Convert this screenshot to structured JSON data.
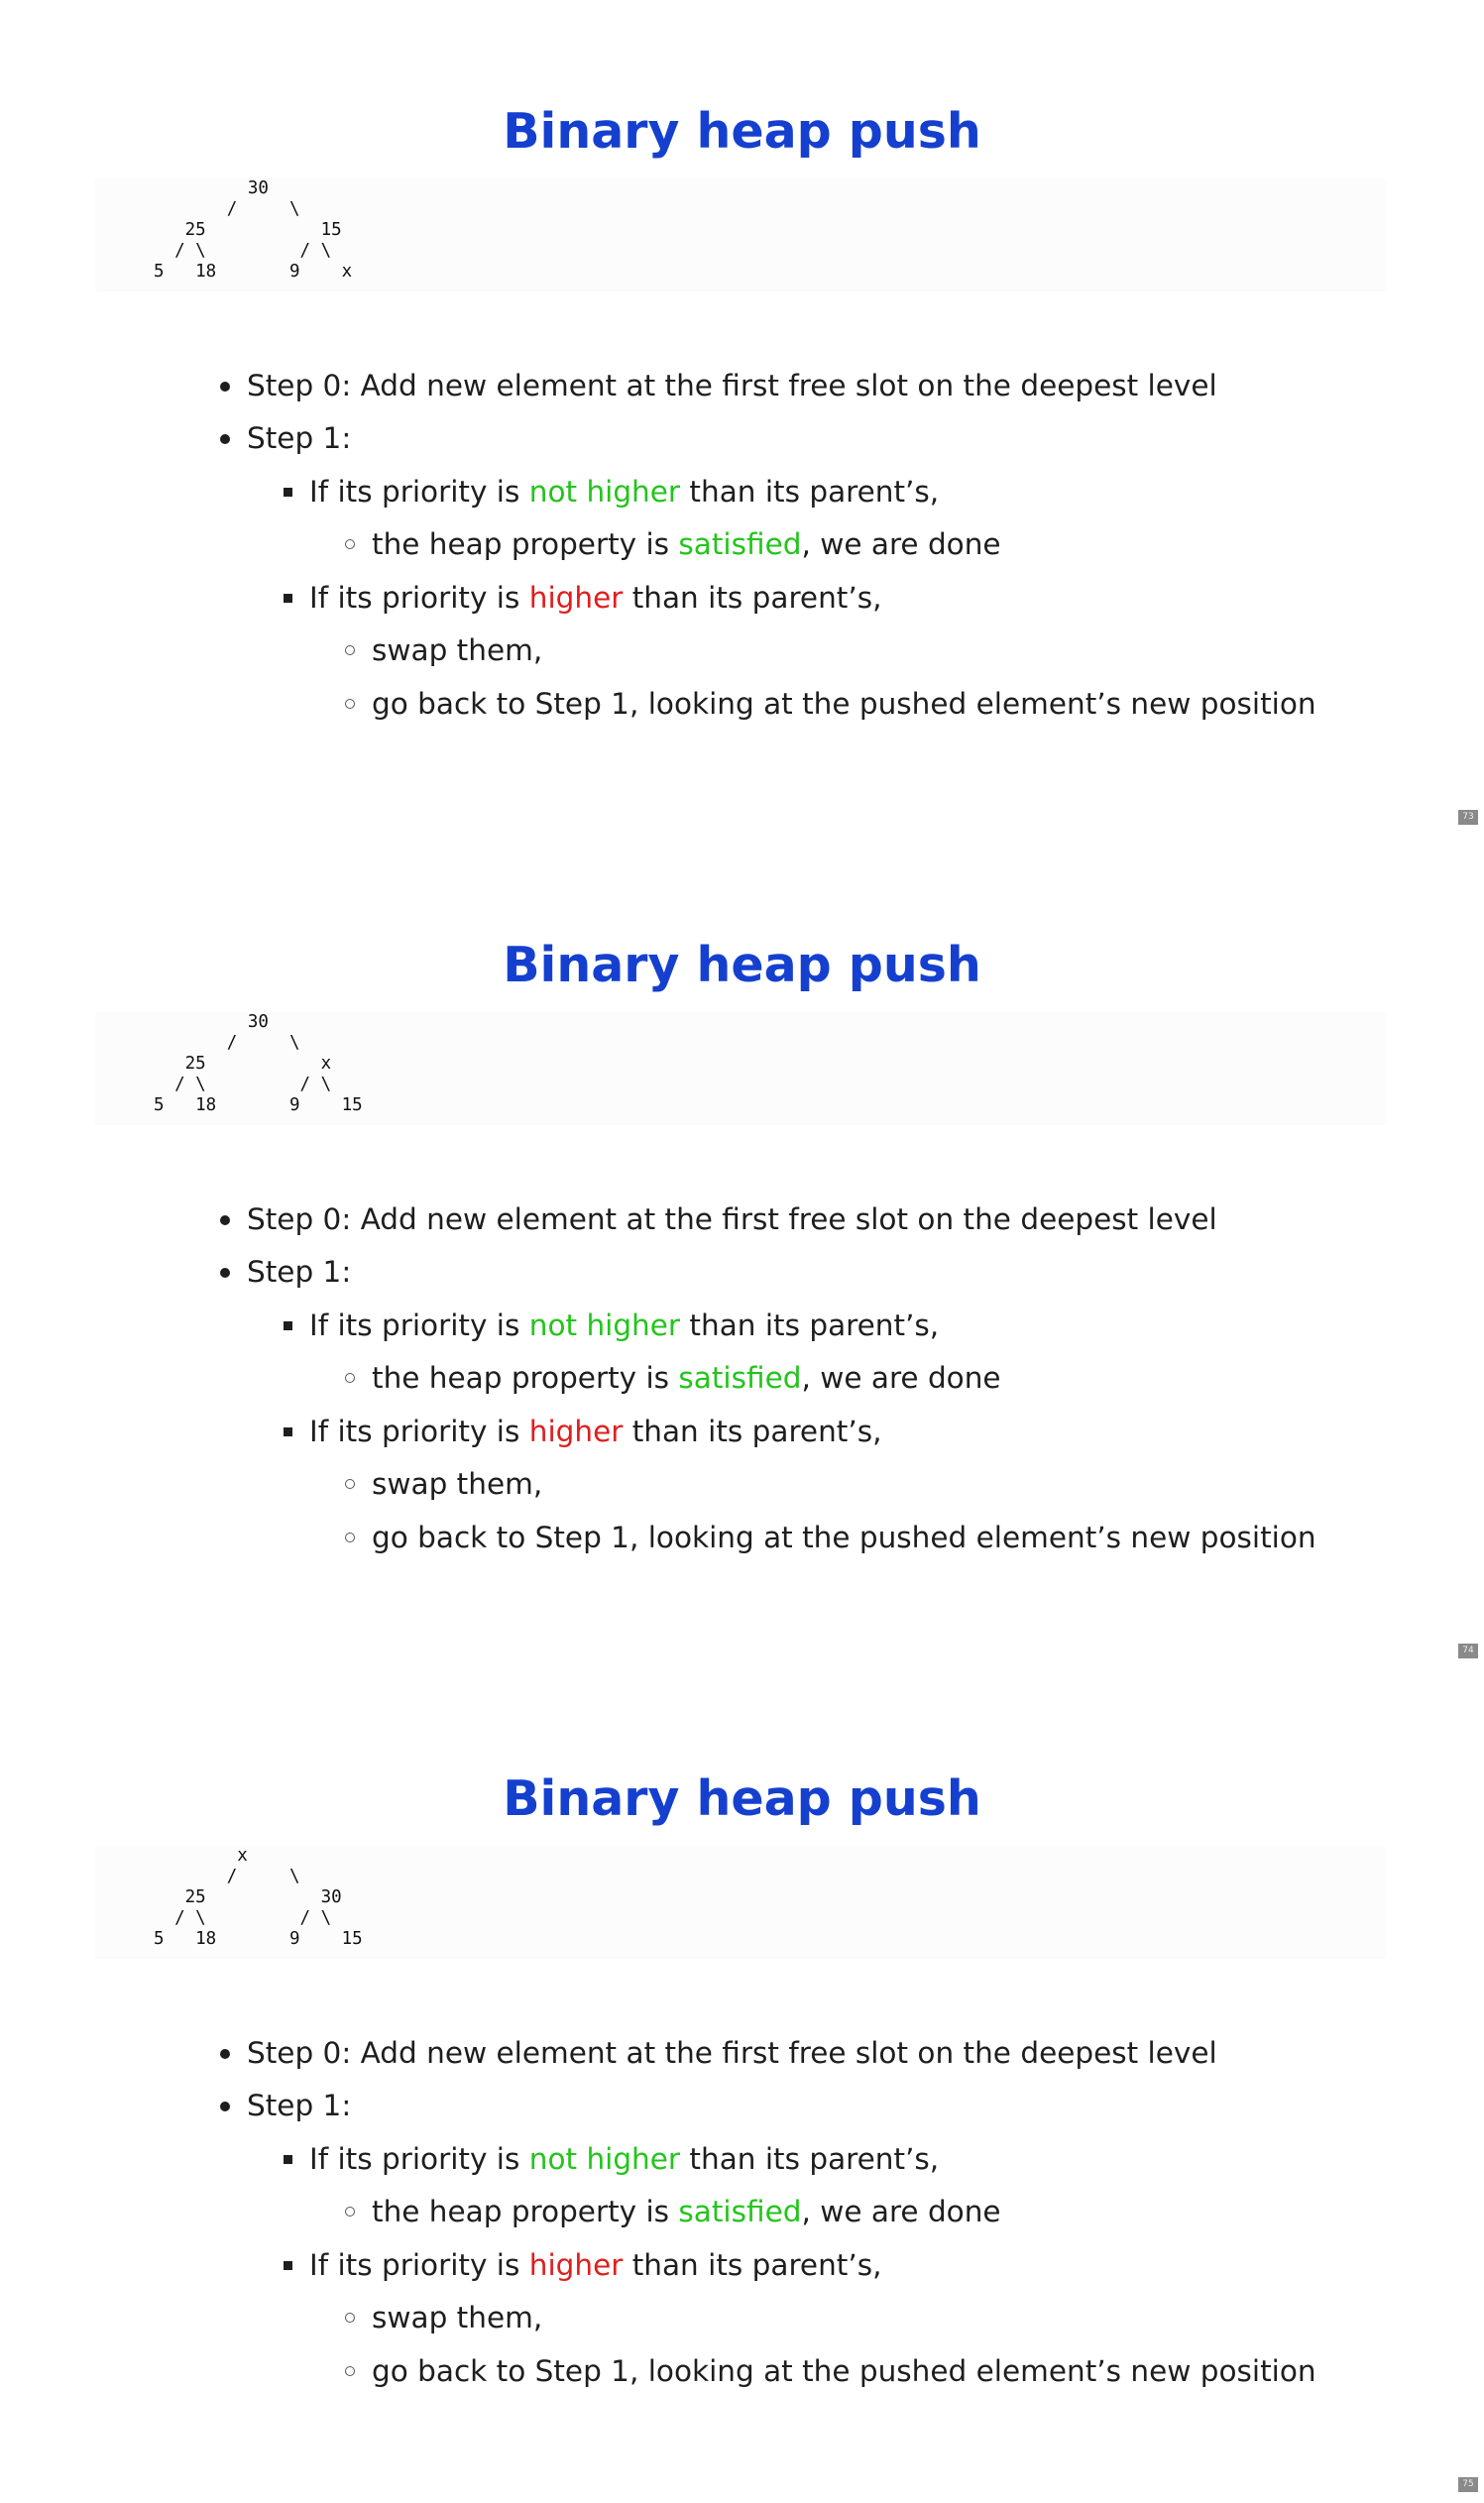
{
  "slides": [
    {
      "title": "Binary heap push",
      "tree": "         30\n       /     \\\n   25           15\n  / \\         / \\\n5   18       9    x",
      "page": "73"
    },
    {
      "title": "Binary heap push",
      "tree": "         30\n       /     \\\n   25           x\n  / \\         / \\\n5   18       9    15",
      "page": "74"
    },
    {
      "title": "Binary heap push",
      "tree": "        x\n       /     \\\n   25           30\n  / \\         / \\\n5   18       9    15",
      "page": "75"
    }
  ],
  "bullets": {
    "step0": "Step 0: Add new element at the first free slot on the deepest level",
    "step1": "Step 1:",
    "cond1_pre": "If its priority is ",
    "cond1_hl": "not higher",
    "cond1_post": " than its parent’s,",
    "res1_pre": "the heap property is ",
    "res1_hl": "satisfied",
    "res1_post": ", we are done",
    "cond2_pre": "If its priority is ",
    "cond2_hl": "higher",
    "cond2_post": " than its parent’s,",
    "res2a": "swap them,",
    "res2b": "go back to Step 1, looking at the pushed element’s new position"
  },
  "colors": {
    "title": "#1540cf",
    "positive": "#24c41c",
    "negative": "#e01e1e"
  }
}
